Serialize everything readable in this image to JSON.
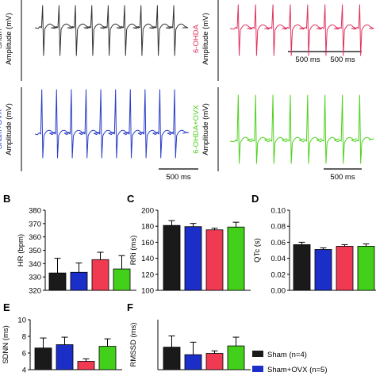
{
  "ecg": {
    "ylabel": "Amplitude (mV)",
    "scale_label": "500 ms",
    "panels": [
      {
        "group": "Sham",
        "color": "#333333"
      },
      {
        "group": "6-OHDA",
        "color": "#e0325f"
      },
      {
        "group": "Sham+OVX",
        "color": "#2b3fc8"
      },
      {
        "group": "6-OHDA+OVX",
        "color": "#4fd11e"
      }
    ]
  },
  "colors": {
    "Sham": "#1a1a1a",
    "Sham+OVX": "#1b2ec8",
    "6-OHDA": "#f03a52",
    "6-OHDA+OVX": "#43d01a"
  },
  "chart_data": [
    {
      "type": "bar",
      "panel": "B",
      "ylabel": "HR (bpm)",
      "ylim": [
        320,
        380
      ],
      "yticks": [
        320,
        330,
        340,
        350,
        360,
        370,
        380
      ],
      "categories": [
        "Sham",
        "Sham+OVX",
        "6-OHDA",
        "6-OHDA+OVX"
      ],
      "values": [
        333,
        333.5,
        343,
        336
      ],
      "errors": [
        11,
        7,
        5.5,
        10
      ]
    },
    {
      "type": "bar",
      "panel": "C",
      "ylabel": "RRi (ms)",
      "ylim": [
        100,
        200
      ],
      "yticks": [
        100,
        120,
        140,
        160,
        180,
        200
      ],
      "categories": [
        "Sham",
        "Sham+OVX",
        "6-OHDA",
        "6-OHDA+OVX"
      ],
      "values": [
        181,
        179.5,
        175.5,
        179
      ],
      "errors": [
        6,
        4,
        2,
        6
      ]
    },
    {
      "type": "bar",
      "panel": "D",
      "ylabel": "QTc (s)",
      "ylim": [
        0,
        0.1
      ],
      "yticks": [
        "0.00",
        "0.02",
        "0.04",
        "0.06",
        "0.08",
        "0.10"
      ],
      "categories": [
        "Sham",
        "Sham+OVX",
        "6-OHDA",
        "6-OHDA+OVX"
      ],
      "values": [
        0.057,
        0.051,
        0.055,
        0.055
      ],
      "errors": [
        0.003,
        0.002,
        0.002,
        0.003
      ]
    },
    {
      "type": "bar",
      "panel": "E",
      "ylabel": "SDNN (ms)",
      "ylim": [
        4,
        10
      ],
      "yticks": [
        4,
        6,
        8,
        10
      ],
      "categories": [
        "Sham",
        "Sham+OVX",
        "6-OHDA",
        "6-OHDA+OVX"
      ],
      "values": [
        6.6,
        7.0,
        5.0,
        6.8
      ],
      "errors": [
        1.2,
        0.9,
        0.3,
        0.9
      ]
    },
    {
      "type": "bar",
      "panel": "F",
      "ylabel": "RMSSD (ms)",
      "categories": [
        "Sham",
        "Sham+OVX",
        "6-OHDA",
        "6-OHDA+OVX"
      ],
      "values": [
        3.8,
        3.2,
        3.3,
        3.9
      ],
      "errors": [
        0.9,
        1.0,
        0.2,
        0.7
      ]
    }
  ],
  "legend": [
    {
      "label": "Sham (n=4)",
      "group": "Sham"
    },
    {
      "label": "Sham+OVX (n=5)",
      "group": "Sham+OVX"
    }
  ]
}
